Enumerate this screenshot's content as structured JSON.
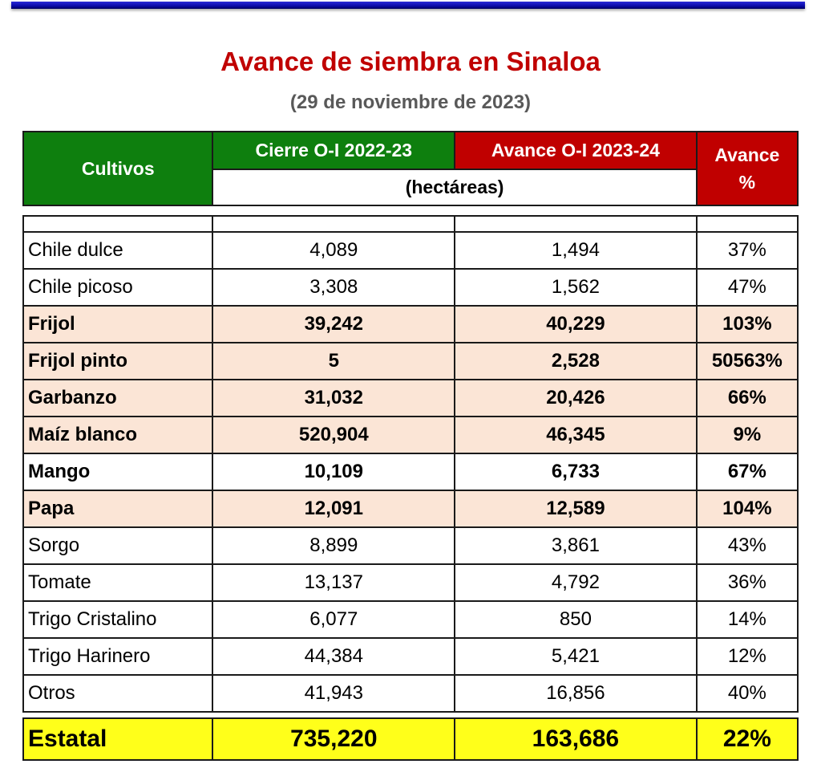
{
  "title": "Avance de siembra en Sinaloa",
  "subtitle": "(29 de noviembre de 2023)",
  "colors": {
    "green_header": "#0e7f0e",
    "red_header": "#c00000",
    "highlight_row": "#fbe5d6",
    "total_row": "#ffff1a",
    "top_bar": "#1010b0"
  },
  "header": {
    "cultivos": "Cultivos",
    "cierre": "Cierre O-I 2022-23",
    "avance": "Avance O-I 2023-24",
    "pct_line1": "Avance",
    "pct_line2": "%",
    "unit": "(hectáreas)"
  },
  "rows": [
    {
      "name": "Chile dulce",
      "cierre": "4,089",
      "avance": "1,494",
      "pct": "37%",
      "bold": false
    },
    {
      "name": "Chile picoso",
      "cierre": "3,308",
      "avance": "1,562",
      "pct": "47%",
      "bold": false
    },
    {
      "name": "Frijol",
      "cierre": "39,242",
      "avance": "40,229",
      "pct": "103%",
      "bold": true
    },
    {
      "name": "Frijol pinto",
      "cierre": "5",
      "avance": "2,528",
      "pct": "50563%",
      "bold": true
    },
    {
      "name": "Garbanzo",
      "cierre": "31,032",
      "avance": "20,426",
      "pct": "66%",
      "bold": true
    },
    {
      "name": "Maíz blanco",
      "cierre": "520,904",
      "avance": "46,345",
      "pct": "9%",
      "bold": true
    },
    {
      "name": "Mango",
      "cierre": "10,109",
      "avance": "6,733",
      "pct": "67%",
      "bold": true
    },
    {
      "name": "Papa",
      "cierre": "12,091",
      "avance": "12,589",
      "pct": "104%",
      "bold": true
    },
    {
      "name": "Sorgo",
      "cierre": "8,899",
      "avance": "3,861",
      "pct": "43%",
      "bold": false
    },
    {
      "name": "Tomate",
      "cierre": "13,137",
      "avance": "4,792",
      "pct": "36%",
      "bold": false
    },
    {
      "name": "Trigo Cristalino",
      "cierre": "6,077",
      "avance": "850",
      "pct": "14%",
      "bold": false
    },
    {
      "name": "Trigo Harinero",
      "cierre": "44,384",
      "avance": "5,421",
      "pct": "12%",
      "bold": false
    },
    {
      "name": "Otros",
      "cierre": "41,943",
      "avance": "16,856",
      "pct": "40%",
      "bold": false
    }
  ],
  "total": {
    "name": "Estatal",
    "cierre": "735,220",
    "avance": "163,686",
    "pct": "22%"
  }
}
